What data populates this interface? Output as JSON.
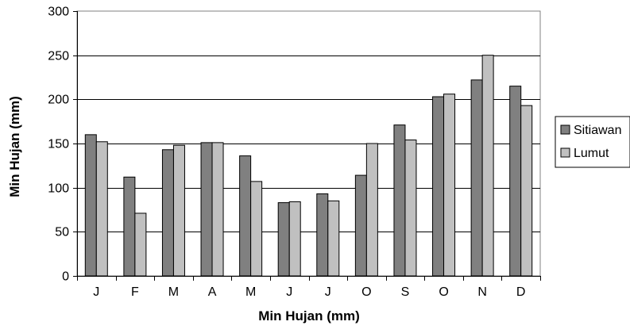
{
  "chart_data": {
    "type": "bar",
    "categories": [
      "J",
      "F",
      "M",
      "A",
      "M",
      "J",
      "J",
      "O",
      "S",
      "O",
      "N",
      "D"
    ],
    "series": [
      {
        "name": "Sitiawan",
        "color": "#808080",
        "values": [
          160,
          112,
          143,
          151,
          136,
          83,
          93,
          114,
          171,
          203,
          222,
          215
        ]
      },
      {
        "name": "Lumut",
        "color": "#c0c0c0",
        "values": [
          152,
          71,
          148,
          151,
          107,
          84,
          85,
          150,
          154,
          206,
          250,
          193
        ]
      }
    ],
    "xlabel": "Min Hujan (mm)",
    "ylabel": "Min Hujan (mm)",
    "ylim": [
      0,
      300
    ],
    "yticks": [
      0,
      50,
      100,
      150,
      200,
      250,
      300
    ],
    "grid": true,
    "legend": "right"
  }
}
